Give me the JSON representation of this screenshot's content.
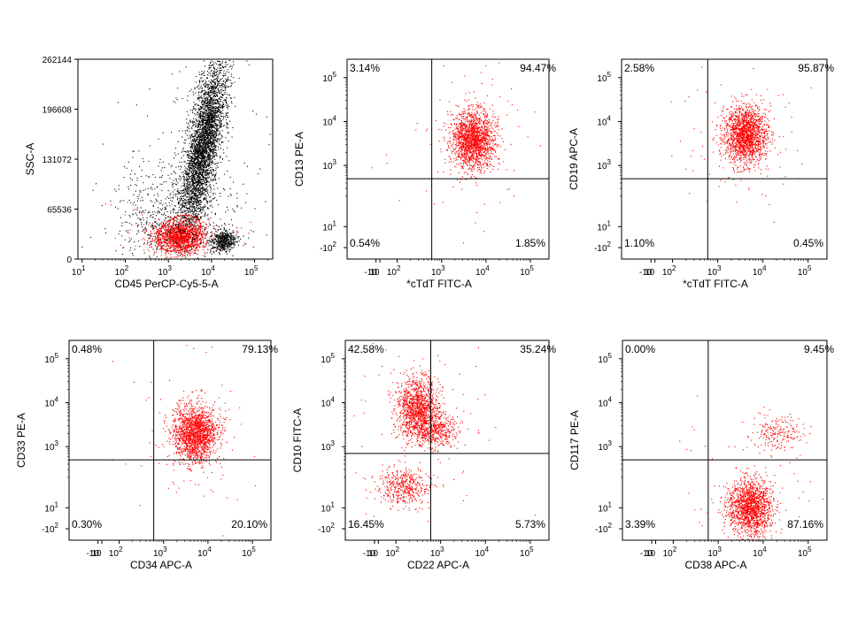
{
  "dot_colors": {
    "gated": "#ff0000",
    "ungated": "#000000"
  },
  "chart_data": [
    {
      "type": "scatter",
      "xlabel": "CD45 PerCP-Cy5-5-A",
      "ylabel": "SSC-A",
      "x_scale": "biexponential",
      "y_scale": "linear",
      "x_ticks": [
        {
          "value": 10,
          "base": "10",
          "exp": "1"
        },
        {
          "value": 100,
          "base": "10",
          "exp": "2"
        },
        {
          "value": 1000,
          "base": "10",
          "exp": "3"
        },
        {
          "value": 10000,
          "base": "10",
          "exp": "4"
        },
        {
          "value": 100000,
          "base": "10",
          "exp": "5"
        }
      ],
      "y_ticks": [
        {
          "value": 0,
          "label": "0"
        },
        {
          "value": 65536,
          "label": "65536"
        },
        {
          "value": 131072,
          "label": "131072"
        },
        {
          "value": 196608,
          "label": "196608"
        },
        {
          "value": 262144,
          "label": "262144"
        }
      ],
      "ylim": [
        0,
        262144
      ],
      "gate": {
        "shape": "ellipse",
        "x_center": 1800,
        "y_center": 34000,
        "color": "#ff0000"
      },
      "populations": [
        {
          "color": "#000000",
          "x_center": 6300,
          "y_center": 150000,
          "count": 3600
        },
        {
          "color": "#ff0000",
          "x_center": 1800,
          "y_center": 30000,
          "count": 1400
        },
        {
          "color": "#000000",
          "x_center": 18000,
          "y_center": 24000,
          "count": 500
        },
        {
          "color": "#000000",
          "x_center": 1000,
          "y_center": 60000,
          "count": 600
        }
      ],
      "quadrants": []
    },
    {
      "type": "scatter",
      "xlabel": "*cTdT FITC-A",
      "ylabel": "CD13 PE-A",
      "x_ticks": [
        {
          "value": -10,
          "label": "-10"
        },
        {
          "value": 10,
          "label": "10"
        },
        {
          "value": 100,
          "base": "10",
          "exp": "2"
        },
        {
          "value": 1000,
          "base": "10",
          "exp": "3"
        },
        {
          "value": 10000,
          "base": "10",
          "exp": "4"
        },
        {
          "value": 100000,
          "base": "10",
          "exp": "5"
        }
      ],
      "y_ticks": [
        {
          "value": -100,
          "label": "-10",
          "exp": "2"
        },
        {
          "value": 10,
          "base": "10",
          "exp": "1"
        },
        {
          "value": 1000,
          "base": "10",
          "exp": "3"
        },
        {
          "value": 10000,
          "base": "10",
          "exp": "4"
        },
        {
          "value": 100000,
          "base": "10",
          "exp": "5"
        }
      ],
      "quadrant_gate": {
        "x": 600,
        "y": 500
      },
      "quadrants": [
        {
          "position": "upper-left",
          "value": "3.14%"
        },
        {
          "position": "upper-right",
          "value": "94.47%"
        },
        {
          "position": "lower-left",
          "value": "0.54%"
        },
        {
          "position": "lower-right",
          "value": "1.85%"
        }
      ],
      "populations": [
        {
          "color": "#ff0000",
          "x_center": 5000,
          "y_center": 4000,
          "count": 1700
        }
      ]
    },
    {
      "type": "scatter",
      "xlabel": "*cTdT FITC-A",
      "ylabel": "CD19 APC-A",
      "x_ticks": [
        {
          "value": -10,
          "label": "-10"
        },
        {
          "value": 10,
          "label": "10"
        },
        {
          "value": 100,
          "base": "10",
          "exp": "2"
        },
        {
          "value": 1000,
          "base": "10",
          "exp": "3"
        },
        {
          "value": 10000,
          "base": "10",
          "exp": "4"
        },
        {
          "value": 100000,
          "base": "10",
          "exp": "5"
        }
      ],
      "y_ticks": [
        {
          "value": -100,
          "label": "-10",
          "exp": "2"
        },
        {
          "value": 10,
          "base": "10",
          "exp": "1"
        },
        {
          "value": 1000,
          "base": "10",
          "exp": "3"
        },
        {
          "value": 10000,
          "base": "10",
          "exp": "4"
        },
        {
          "value": 100000,
          "base": "10",
          "exp": "5"
        }
      ],
      "quadrant_gate": {
        "x": 600,
        "y": 500
      },
      "quadrants": [
        {
          "position": "upper-left",
          "value": "2.58%"
        },
        {
          "position": "upper-right",
          "value": "95.87%"
        },
        {
          "position": "lower-left",
          "value": "1.10%"
        },
        {
          "position": "lower-right",
          "value": "0.45%"
        }
      ],
      "populations": [
        {
          "color": "#ff0000",
          "x_center": 4000,
          "y_center": 5000,
          "count": 1700
        }
      ]
    },
    {
      "type": "scatter",
      "xlabel": "CD34 APC-A",
      "ylabel": "CD33 PE-A",
      "x_ticks": [
        {
          "value": -10,
          "label": "-10"
        },
        {
          "value": 10,
          "label": "10"
        },
        {
          "value": 100,
          "base": "10",
          "exp": "2"
        },
        {
          "value": 1000,
          "base": "10",
          "exp": "3"
        },
        {
          "value": 10000,
          "base": "10",
          "exp": "4"
        },
        {
          "value": 100000,
          "base": "10",
          "exp": "5"
        }
      ],
      "y_ticks": [
        {
          "value": -100,
          "label": "-10",
          "exp": "2"
        },
        {
          "value": 10,
          "base": "10",
          "exp": "1"
        },
        {
          "value": 1000,
          "base": "10",
          "exp": "3"
        },
        {
          "value": 10000,
          "base": "10",
          "exp": "4"
        },
        {
          "value": 100000,
          "base": "10",
          "exp": "5"
        }
      ],
      "quadrant_gate": {
        "x": 600,
        "y": 500
      },
      "quadrants": [
        {
          "position": "upper-left",
          "value": "0.48%"
        },
        {
          "position": "upper-right",
          "value": "79.13%"
        },
        {
          "position": "lower-left",
          "value": "0.30%"
        },
        {
          "position": "lower-right",
          "value": "20.10%"
        }
      ],
      "populations": [
        {
          "color": "#ff0000",
          "x_center": 5000,
          "y_center": 2000,
          "count": 1700
        }
      ]
    },
    {
      "type": "scatter",
      "xlabel": "CD22 APC-A",
      "ylabel": "CD10 FITC-A",
      "x_ticks": [
        {
          "value": -10,
          "label": "-10"
        },
        {
          "value": 10,
          "label": "10"
        },
        {
          "value": 100,
          "base": "10",
          "exp": "2"
        },
        {
          "value": 1000,
          "base": "10",
          "exp": "3"
        },
        {
          "value": 10000,
          "base": "10",
          "exp": "4"
        },
        {
          "value": 100000,
          "base": "10",
          "exp": "5"
        }
      ],
      "y_ticks": [
        {
          "value": -100,
          "label": "-10",
          "exp": "2"
        },
        {
          "value": 10,
          "base": "10",
          "exp": "1"
        },
        {
          "value": 1000,
          "base": "10",
          "exp": "3"
        },
        {
          "value": 10000,
          "base": "10",
          "exp": "4"
        },
        {
          "value": 100000,
          "base": "10",
          "exp": "5"
        }
      ],
      "quadrant_gate": {
        "x": 600,
        "y": 700
      },
      "quadrants": [
        {
          "position": "upper-left",
          "value": "42.58%"
        },
        {
          "position": "upper-right",
          "value": "35.24%"
        },
        {
          "position": "lower-left",
          "value": "16.45%"
        },
        {
          "position": "lower-right",
          "value": "5.73%"
        }
      ],
      "populations": [
        {
          "color": "#ff0000",
          "x_center": 300,
          "y_center": 8000,
          "count": 1200
        },
        {
          "color": "#ff0000",
          "x_center": 700,
          "y_center": 2500,
          "count": 500
        },
        {
          "color": "#ff0000",
          "x_center": 150,
          "y_center": 120,
          "count": 450
        }
      ]
    },
    {
      "type": "scatter",
      "xlabel": "CD38 APC-A",
      "ylabel": "CD117 PE-A",
      "x_ticks": [
        {
          "value": -10,
          "label": "-10"
        },
        {
          "value": 10,
          "label": "10"
        },
        {
          "value": 100,
          "base": "10",
          "exp": "2"
        },
        {
          "value": 1000,
          "base": "10",
          "exp": "3"
        },
        {
          "value": 10000,
          "base": "10",
          "exp": "4"
        },
        {
          "value": 100000,
          "base": "10",
          "exp": "5"
        }
      ],
      "y_ticks": [
        {
          "value": -100,
          "label": "-10",
          "exp": "2"
        },
        {
          "value": 10,
          "base": "10",
          "exp": "1"
        },
        {
          "value": 1000,
          "base": "10",
          "exp": "3"
        },
        {
          "value": 10000,
          "base": "10",
          "exp": "4"
        },
        {
          "value": 100000,
          "base": "10",
          "exp": "5"
        }
      ],
      "quadrant_gate": {
        "x": 600,
        "y": 500
      },
      "quadrants": [
        {
          "position": "upper-left",
          "value": "0.00%"
        },
        {
          "position": "upper-right",
          "value": "9.45%"
        },
        {
          "position": "lower-left",
          "value": "3.39%"
        },
        {
          "position": "lower-right",
          "value": "87.16%"
        }
      ],
      "populations": [
        {
          "color": "#ff0000",
          "x_center": 5000,
          "y_center": 15,
          "count": 1500
        },
        {
          "color": "#ff0000",
          "x_center": 20000,
          "y_center": 2000,
          "count": 200
        }
      ]
    }
  ]
}
